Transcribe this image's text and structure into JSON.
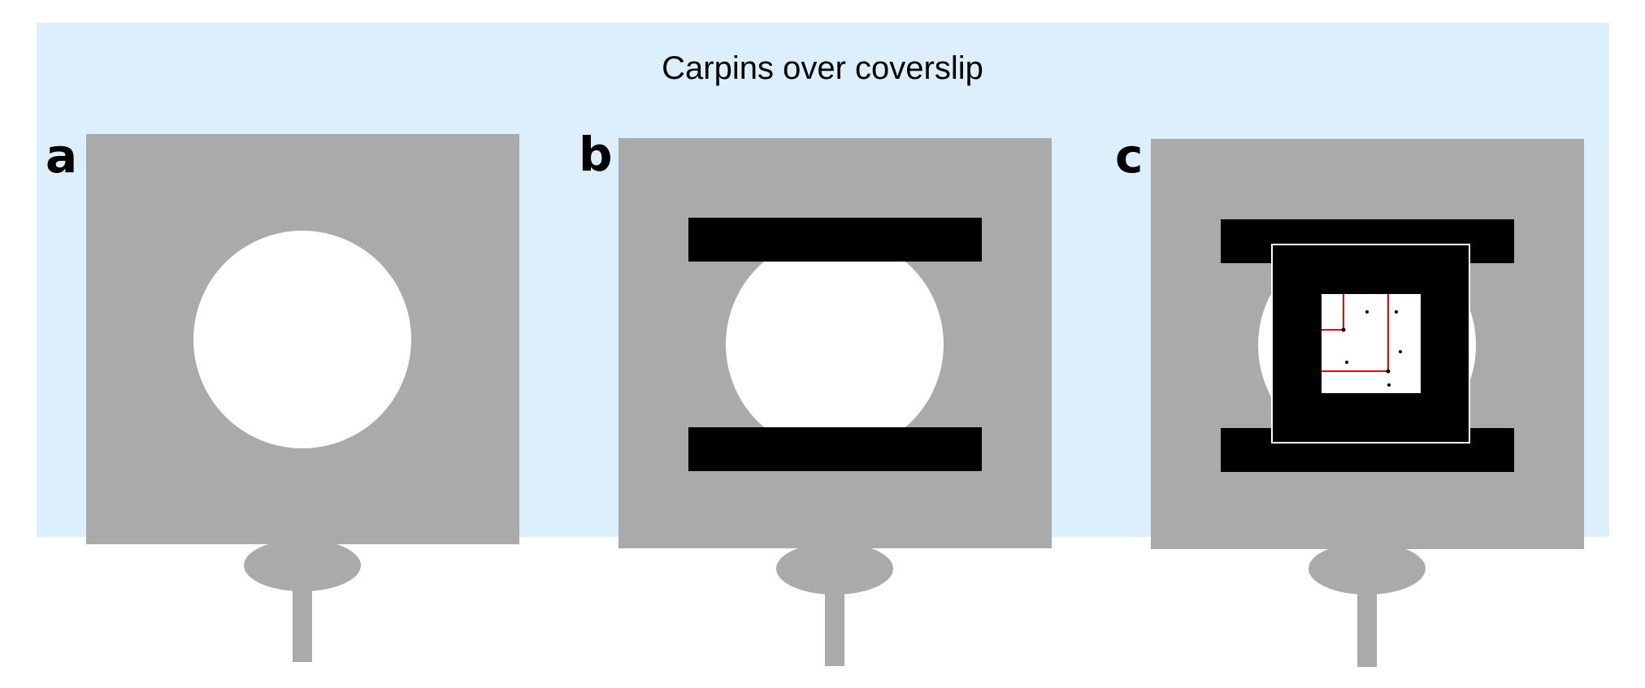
{
  "figure": {
    "title": "Carpins over coverslip",
    "panels": [
      {
        "letter": "a",
        "has_clamps": false,
        "has_zoom_inset": false
      },
      {
        "letter": "b",
        "has_clamps": true,
        "has_zoom_inset": false
      },
      {
        "letter": "c",
        "has_clamps": true,
        "has_zoom_inset": true
      }
    ]
  },
  "colors": {
    "background_band": "#ddeefc",
    "stage_plate": "#aaaaaa",
    "coverslip_opening": "#ffffff",
    "clamp_bars": "#000000",
    "inset_border": "#ffffff",
    "inset_trace": "#ee0000",
    "inset_points": "#000000"
  }
}
